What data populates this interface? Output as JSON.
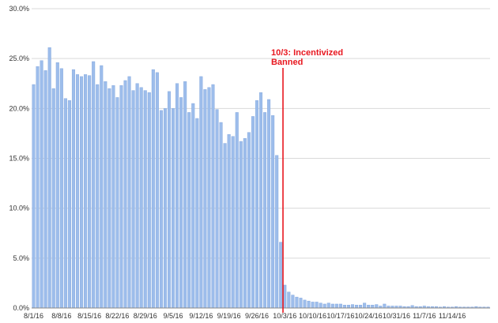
{
  "chart_data": {
    "type": "bar",
    "title": "",
    "xlabel": "",
    "ylabel": "",
    "ylim": [
      0,
      30
    ],
    "y_ticks": [
      "0.0%",
      "5.0%",
      "10.0%",
      "15.0%",
      "20.0%",
      "25.0%",
      "30.0%"
    ],
    "y_tick_values": [
      0,
      5,
      10,
      15,
      20,
      25,
      30
    ],
    "grid": "horizontal",
    "start_date": "2016-08-01",
    "x_tick_labels": [
      "8/1/16",
      "8/8/16",
      "8/15/16",
      "8/22/16",
      "8/29/16",
      "9/5/16",
      "9/12/16",
      "9/19/16",
      "9/26/16",
      "10/3/16",
      "10/10/16",
      "10/17/16",
      "10/24/16",
      "10/31/16",
      "11/7/16",
      "11/14/16"
    ],
    "colors": {
      "bar": "#9dbdeb",
      "bar_edge": "#7fa4dc",
      "annotation": "#e8171f",
      "grid": "#d9d9d9"
    },
    "values": [
      22.4,
      24.2,
      24.8,
      23.8,
      26.1,
      22.0,
      24.6,
      24.0,
      21.0,
      20.8,
      23.9,
      23.4,
      23.2,
      23.4,
      23.3,
      24.7,
      22.4,
      24.3,
      22.7,
      22.0,
      22.3,
      21.1,
      22.3,
      22.8,
      23.2,
      21.8,
      22.5,
      22.1,
      21.8,
      21.6,
      23.9,
      23.6,
      19.8,
      20.0,
      21.7,
      20.0,
      22.5,
      21.1,
      22.7,
      19.6,
      20.5,
      19.0,
      23.2,
      21.9,
      22.1,
      22.4,
      19.9,
      18.6,
      16.5,
      17.4,
      17.2,
      19.6,
      16.7,
      17.0,
      17.6,
      19.2,
      20.8,
      21.6,
      19.6,
      20.9,
      19.3,
      15.3,
      6.6,
      2.3,
      1.6,
      1.3,
      1.1,
      1.0,
      0.8,
      0.7,
      0.6,
      0.6,
      0.5,
      0.4,
      0.5,
      0.4,
      0.4,
      0.4,
      0.3,
      0.3,
      0.35,
      0.3,
      0.3,
      0.5,
      0.3,
      0.3,
      0.35,
      0.2,
      0.4,
      0.2,
      0.2,
      0.2,
      0.2,
      0.15,
      0.15,
      0.25,
      0.15,
      0.15,
      0.2,
      0.15,
      0.15,
      0.15,
      0.1,
      0.15,
      0.1,
      0.1,
      0.15,
      0.1,
      0.1,
      0.1,
      0.1,
      0.15,
      0.1,
      0.1,
      0.1
    ],
    "annotation": {
      "date": "10/3/16",
      "line1": "10/3: Incentivized",
      "line2": "Banned"
    }
  }
}
